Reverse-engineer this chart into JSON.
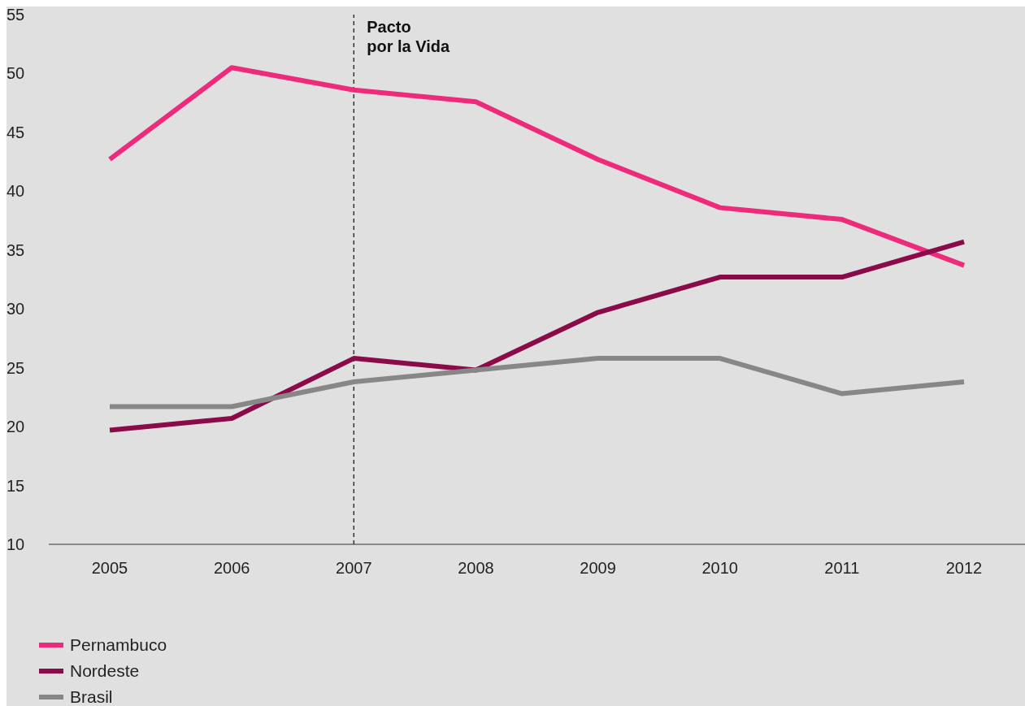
{
  "chart_data": {
    "type": "line",
    "categories": [
      "2005",
      "2006",
      "2007",
      "2008",
      "2009",
      "2010",
      "2011",
      "2012"
    ],
    "series": [
      {
        "name": "Pernambuco",
        "color": "#ee2a7b",
        "values": [
          42.7,
          50.5,
          48.6,
          47.6,
          42.7,
          38.6,
          37.6,
          33.7
        ]
      },
      {
        "name": "Nordeste",
        "color": "#8b0a4a",
        "values": [
          19.7,
          20.7,
          25.8,
          24.8,
          29.7,
          32.7,
          32.7,
          35.7
        ]
      },
      {
        "name": "Brasil",
        "color": "#878787",
        "values": [
          21.7,
          21.7,
          23.8,
          24.8,
          25.8,
          25.8,
          22.8,
          23.8
        ]
      }
    ],
    "ylim": [
      10,
      55
    ],
    "yticks": [
      10,
      15,
      20,
      25,
      30,
      35,
      40,
      45,
      50,
      55
    ],
    "grid": false,
    "legend": "bottom left",
    "ref_lines": [
      {
        "axis": "x",
        "value": "2007",
        "label": "Pacto por la Vida",
        "color": "#333333",
        "line_style": "dashed"
      }
    ]
  }
}
